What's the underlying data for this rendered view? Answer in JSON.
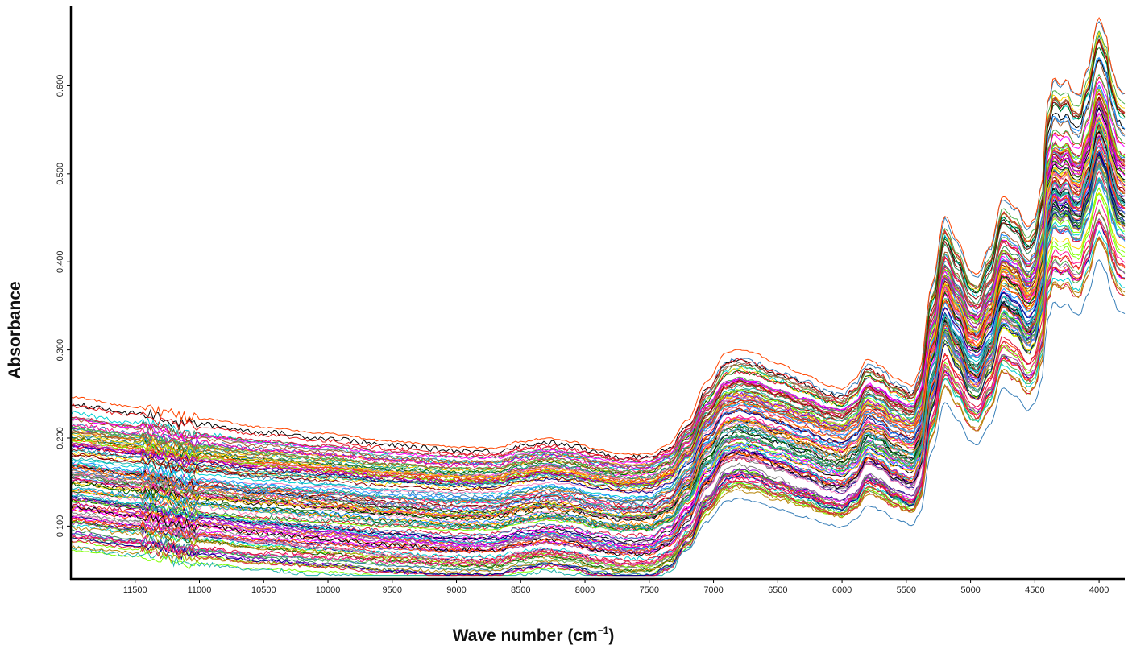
{
  "chart_data": {
    "type": "line",
    "title": "",
    "xlabel": "Wave number (cm",
    "xlabel_superscript": "−1",
    "xlabel_suffix": ")",
    "ylabel": "Absorbance",
    "x_reversed": true,
    "xlim": [
      12000,
      3800
    ],
    "ylim": [
      0.04,
      0.69
    ],
    "x_ticks": [
      11500,
      11000,
      10500,
      10000,
      9500,
      9000,
      8500,
      8000,
      7500,
      7000,
      6500,
      6000,
      5500,
      5000,
      4500,
      4000
    ],
    "x_tick_labels": [
      "11500",
      "11000",
      "10500",
      "10000",
      "9500",
      "9000",
      "8500",
      "8000",
      "7500",
      "7000",
      "6500",
      "6000",
      "5500",
      "5000",
      "4500",
      "4000"
    ],
    "y_ticks": [
      0.1,
      0.2,
      0.3,
      0.4,
      0.5,
      0.6
    ],
    "y_tick_labels": [
      "0.100",
      "0.200",
      "0.300",
      "0.400",
      "0.500",
      "0.600"
    ],
    "grid": false,
    "legend": "none",
    "n_series": 120,
    "series_colors": [
      "#e41a1c",
      "#377eb8",
      "#4daf4a",
      "#984ea3",
      "#ff7f00",
      "#a65628",
      "#f781bf",
      "#000000",
      "#00ced1",
      "#8b0000",
      "#006400",
      "#00008b",
      "#ff1493",
      "#ffd700",
      "#808080",
      "#7fff00",
      "#ff00ff",
      "#1e90ff",
      "#b8860b",
      "#2e8b57",
      "#ff4500",
      "#9400d3",
      "#20b2aa",
      "#dc143c"
    ],
    "reference_spectrum": {
      "x": [
        12000,
        11500,
        11000,
        10500,
        10000,
        9500,
        9000,
        8700,
        8500,
        8300,
        8100,
        7900,
        7700,
        7500,
        7350,
        7200,
        7050,
        6900,
        6800,
        6700,
        6500,
        6300,
        6100,
        6000,
        5900,
        5800,
        5700,
        5600,
        5450,
        5400,
        5300,
        5200,
        5100,
        5000,
        4950,
        4850,
        4750,
        4650,
        4550,
        4500,
        4450,
        4400,
        4350,
        4300,
        4250,
        4200,
        4150,
        4100,
        4000,
        3950,
        3900,
        3850,
        3800
      ],
      "y": [
        0.143,
        0.135,
        0.125,
        0.118,
        0.113,
        0.107,
        0.103,
        0.103,
        0.11,
        0.114,
        0.111,
        0.104,
        0.1,
        0.101,
        0.111,
        0.136,
        0.175,
        0.203,
        0.207,
        0.204,
        0.194,
        0.184,
        0.173,
        0.17,
        0.18,
        0.201,
        0.195,
        0.183,
        0.175,
        0.19,
        0.277,
        0.345,
        0.32,
        0.291,
        0.287,
        0.315,
        0.365,
        0.355,
        0.335,
        0.345,
        0.375,
        0.46,
        0.485,
        0.478,
        0.483,
        0.47,
        0.468,
        0.492,
        0.545,
        0.53,
        0.495,
        0.475,
        0.47
      ]
    },
    "offset_range": [
      -0.065,
      0.075
    ],
    "baseline_slope_range": [
      -0.02,
      0.03
    ]
  }
}
